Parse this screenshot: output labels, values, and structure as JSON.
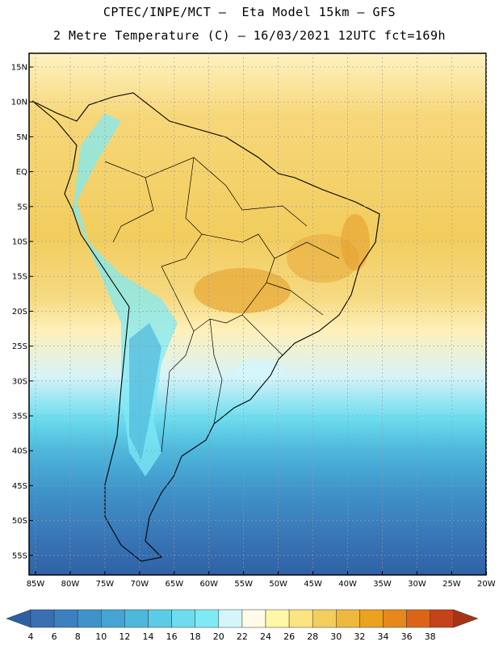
{
  "header": {
    "line1": "CPTEC/INPE/MCT –  Eta Model 15km – GFS",
    "line2": "2 Metre Temperature (C) – 16/03/2021 12UTC fct=169h"
  },
  "map": {
    "lat_labels": [
      "15N",
      "10N",
      "5N",
      "EQ",
      "5S",
      "10S",
      "15S",
      "20S",
      "25S",
      "30S",
      "35S",
      "40S",
      "45S",
      "50S",
      "55S"
    ],
    "lon_labels": [
      "85W",
      "80W",
      "75W",
      "70W",
      "65W",
      "60W",
      "55W",
      "50W",
      "45W",
      "40W",
      "35W",
      "30W",
      "25W",
      "20W"
    ]
  },
  "colorbar": {
    "labels": [
      "4",
      "6",
      "8",
      "10",
      "12",
      "14",
      "16",
      "18",
      "20",
      "22",
      "24",
      "26",
      "28",
      "30",
      "32",
      "34",
      "36",
      "38"
    ],
    "colors": [
      "#3a6fb4",
      "#3c80bf",
      "#3f93c9",
      "#45a4d3",
      "#4eb8dc",
      "#5bcbe6",
      "#6cdcee",
      "#7feaf5",
      "#d4f6fb",
      "#fffbe8",
      "#fff6a6",
      "#fbe482",
      "#f3ce5d",
      "#ecb83e",
      "#eaa21f",
      "#e8871b",
      "#dd6417",
      "#c4431a"
    ],
    "low_color": "#2e5fa3",
    "high_color": "#a63414"
  }
}
